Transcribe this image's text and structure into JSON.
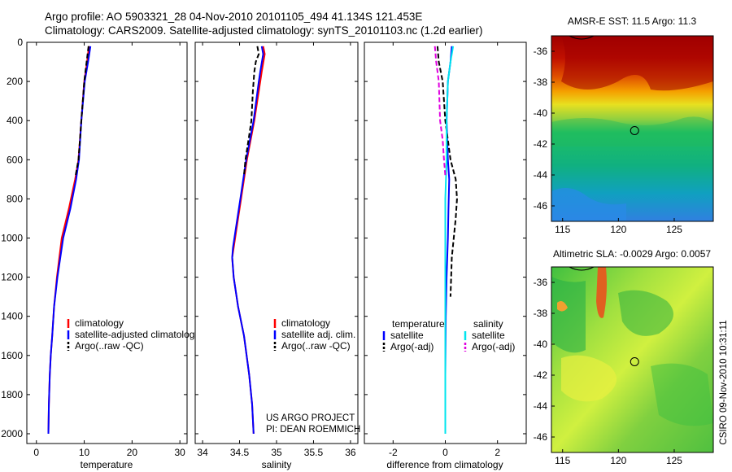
{
  "header": {
    "line1": "Argo profile: AO 5903321_28 04-Nov-2010 20101105_494 41.134S 121.453E",
    "line2": "Climatology: CARS2009. Satellite-adjusted climatology: synTS_20101103.nc (1.2d earlier)"
  },
  "colors": {
    "climatology": "#ff0000",
    "satellite": "#0000ff",
    "argo": "#000000",
    "satellite_salinity_diff": "#00e5ee",
    "argo_salinity_diff": "#e000e0"
  },
  "chart_data": [
    {
      "type": "line",
      "panel": "temperature",
      "xlabel": "temperature",
      "ylabel": "",
      "xlim": [
        -2,
        31.5
      ],
      "ylim": [
        2050,
        0
      ],
      "xticks": [
        0,
        10,
        20,
        30
      ],
      "yticks": [
        0,
        200,
        400,
        600,
        800,
        1000,
        1200,
        1400,
        1600,
        1800,
        2000
      ],
      "series": [
        {
          "name": "climatology",
          "color": "#ff0000",
          "dash": "solid",
          "x": [
            11.0,
            10.6,
            10.0,
            9.4,
            8.8,
            8.1,
            6.8,
            5.3,
            4.3,
            3.7,
            3.3,
            3.0,
            2.8,
            2.6,
            2.5
          ],
          "y": [
            20,
            100,
            200,
            400,
            600,
            700,
            850,
            1000,
            1200,
            1350,
            1500,
            1600,
            1700,
            1850,
            2000
          ]
        },
        {
          "name": "satellite-adjusted climatology",
          "color": "#0000ff",
          "dash": "solid",
          "x": [
            11.3,
            10.8,
            10.1,
            9.4,
            8.9,
            8.3,
            7.1,
            5.6,
            4.4,
            3.7,
            3.3,
            3.0,
            2.8,
            2.6,
            2.5
          ],
          "y": [
            20,
            100,
            200,
            400,
            600,
            700,
            850,
            1000,
            1200,
            1350,
            1500,
            1600,
            1700,
            1850,
            2000
          ]
        },
        {
          "name": "Argo(..raw -QC)",
          "color": "#000000",
          "dash": "dashed",
          "x": [
            10.9,
            10.5,
            10.0,
            9.4,
            8.8,
            8.2
          ],
          "y": [
            20,
            100,
            200,
            400,
            600,
            680
          ]
        }
      ],
      "legend": {
        "placement": "bottom-right",
        "entries": [
          "climatology",
          "satellite-adjusted climatology",
          "Argo(..raw -QC)"
        ]
      }
    },
    {
      "type": "line",
      "panel": "salinity",
      "xlabel": "salinity",
      "ylabel": "",
      "xlim": [
        33.9,
        36.1
      ],
      "ylim": [
        2050,
        0
      ],
      "xticks": [
        34,
        34.5,
        35,
        35.5,
        36
      ],
      "xticklabels": [
        "34",
        "34.5",
        "35",
        "35.5",
        "36"
      ],
      "series": [
        {
          "name": "climatology",
          "color": "#ff0000",
          "dash": "solid",
          "x": [
            34.82,
            34.84,
            34.8,
            34.78,
            34.7,
            34.6,
            34.52,
            34.46,
            34.42,
            34.4,
            34.42,
            34.48,
            34.56,
            34.63,
            34.67,
            34.69
          ],
          "y": [
            20,
            60,
            150,
            200,
            400,
            600,
            800,
            950,
            1050,
            1100,
            1200,
            1350,
            1500,
            1700,
            1850,
            2000
          ]
        },
        {
          "name": "satellite adj. clim.",
          "color": "#0000ff",
          "dash": "solid",
          "x": [
            34.8,
            34.82,
            34.78,
            34.76,
            34.69,
            34.59,
            34.51,
            34.45,
            34.41,
            34.4,
            34.42,
            34.48,
            34.56,
            34.63,
            34.67,
            34.69
          ],
          "y": [
            20,
            60,
            150,
            200,
            400,
            600,
            800,
            950,
            1050,
            1100,
            1200,
            1350,
            1500,
            1700,
            1850,
            2000
          ]
        },
        {
          "name": "Argo(..raw -QC)",
          "color": "#000000",
          "dash": "dashed",
          "x": [
            34.74,
            34.76,
            34.72,
            34.7,
            34.68,
            34.66,
            34.62,
            34.58,
            34.56
          ],
          "y": [
            20,
            60,
            100,
            150,
            250,
            400,
            500,
            600,
            680
          ]
        }
      ],
      "legend": {
        "placement": "bottom-right",
        "entries": [
          "climatology",
          "satellite adj. clim.",
          "Argo(..raw -QC)"
        ]
      },
      "annotation": [
        "US ARGO PROJECT",
        "PI: DEAN ROEMMICH"
      ]
    },
    {
      "type": "line",
      "panel": "difference",
      "xlabel": "difference from climatology",
      "ylabel": "",
      "xlim": [
        -3.1,
        3.1
      ],
      "ylim": [
        2050,
        0
      ],
      "xticks": [
        -2,
        0,
        2
      ],
      "series": [
        {
          "name": "temperature satellite",
          "color": "#0000ff",
          "dash": "solid",
          "x": [
            0.25,
            0.2,
            0.1,
            0.05,
            0.1,
            0.15,
            0.12,
            0.1,
            0.05,
            0.02,
            0.0,
            0.0
          ],
          "y": [
            20,
            100,
            200,
            400,
            600,
            700,
            850,
            1000,
            1200,
            1400,
            1700,
            2000
          ]
        },
        {
          "name": "temperature Argo(-adj)",
          "color": "#000000",
          "dash": "dashed",
          "x": [
            -0.3,
            -0.25,
            -0.1,
            0.0,
            0.2,
            0.4,
            0.45,
            0.4,
            0.25,
            0.2
          ],
          "y": [
            20,
            100,
            200,
            400,
            600,
            700,
            800,
            900,
            1100,
            1300
          ]
        },
        {
          "name": "salinity satellite",
          "color": "#00e5ee",
          "dash": "solid",
          "x": [
            0.3,
            0.2,
            0.1,
            0.05,
            0.05,
            0.0,
            0.0,
            0.0,
            0.0
          ],
          "y": [
            20,
            100,
            200,
            400,
            600,
            800,
            1200,
            1600,
            2000
          ]
        },
        {
          "name": "salinity Argo(-adj)",
          "color": "#e000e0",
          "dash": "dashed",
          "x": [
            -0.4,
            -0.35,
            -0.25,
            -0.2,
            -0.1,
            -0.05,
            0.0
          ],
          "y": [
            20,
            100,
            200,
            400,
            500,
            600,
            680
          ]
        }
      ],
      "legend": {
        "placement": "bottom",
        "groups": [
          {
            "title": "temperature",
            "entries": [
              "satellite",
              "Argo(-adj)"
            ]
          },
          {
            "title": "salinity",
            "entries": [
              "satellite",
              "Argo(-adj)"
            ]
          }
        ]
      }
    },
    {
      "type": "heatmap",
      "panel": "sst-map",
      "title": "AMSR-E SST: 11.5  Argo: 11.3",
      "xlim": [
        114,
        128.5
      ],
      "ylim": [
        -47,
        -35
      ],
      "xticks": [
        115,
        120,
        125
      ],
      "yticks": [
        -36,
        -38,
        -40,
        -42,
        -44,
        -46
      ],
      "marker": {
        "lon": 121.45,
        "lat": -41.13
      }
    },
    {
      "type": "heatmap",
      "panel": "sla-map",
      "title": "Altimetric SLA: -0.0029  Argo: 0.0057",
      "xlim": [
        114,
        128.5
      ],
      "ylim": [
        -47,
        -35
      ],
      "xticks": [
        115,
        120,
        125
      ],
      "yticks": [
        -36,
        -38,
        -40,
        -42,
        -44,
        -46
      ],
      "marker": {
        "lon": 121.45,
        "lat": -41.13
      }
    }
  ],
  "footer": {
    "stamp": "CSIRO 09-Nov-2010 10:31:11"
  }
}
